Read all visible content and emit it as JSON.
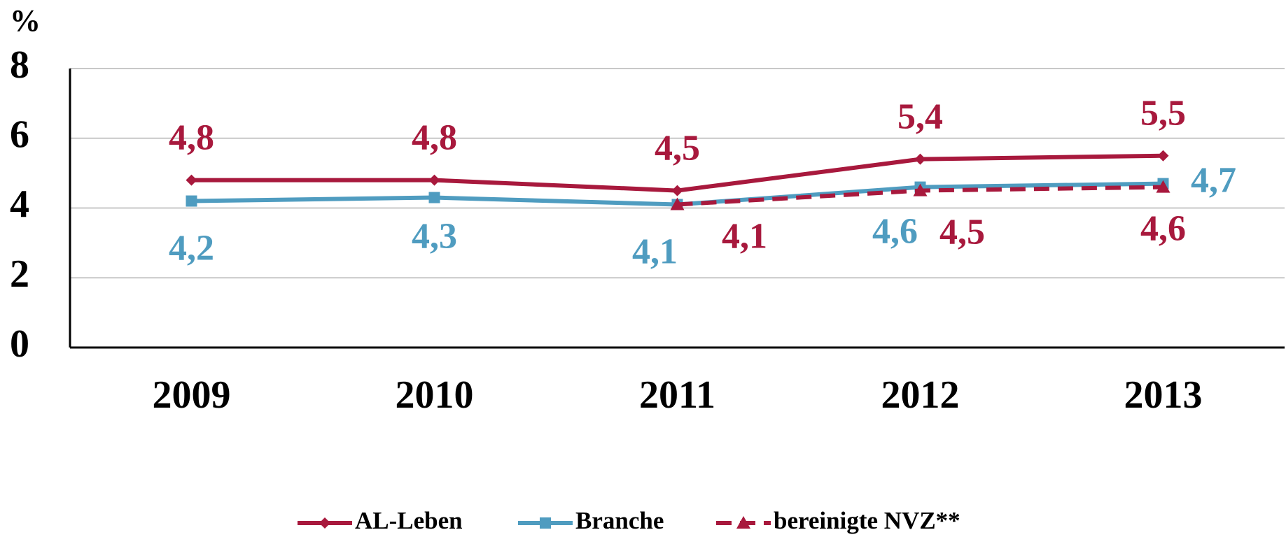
{
  "chart_data": {
    "type": "line",
    "y_label": "%",
    "categories": [
      "2009",
      "2010",
      "2011",
      "2012",
      "2013"
    ],
    "series": [
      {
        "name": "AL-Leben",
        "color": "#a8193d",
        "marker": "diamond",
        "dashed": false,
        "values": [
          4.8,
          4.8,
          4.5,
          5.4,
          5.5
        ],
        "value_labels": [
          "4,8",
          "4,8",
          "4,5",
          "5,4",
          "5,5"
        ]
      },
      {
        "name": "Branche",
        "color": "#4f9cc0",
        "marker": "square",
        "dashed": false,
        "values": [
          4.2,
          4.3,
          4.1,
          4.6,
          4.7
        ],
        "value_labels": [
          "4,2",
          "4,3",
          "4,1",
          "4,6",
          "4,7"
        ]
      },
      {
        "name": "bereinigte NVZ**",
        "color": "#a8193d",
        "marker": "triangle",
        "dashed": true,
        "values": [
          null,
          null,
          4.1,
          4.5,
          4.6
        ],
        "value_labels": [
          null,
          null,
          "4,1",
          "4,5",
          "4,6"
        ]
      }
    ],
    "ylim": [
      0,
      8
    ],
    "yticks": [
      0,
      2,
      4,
      6,
      8
    ],
    "grid": true,
    "legend": "bottom"
  }
}
